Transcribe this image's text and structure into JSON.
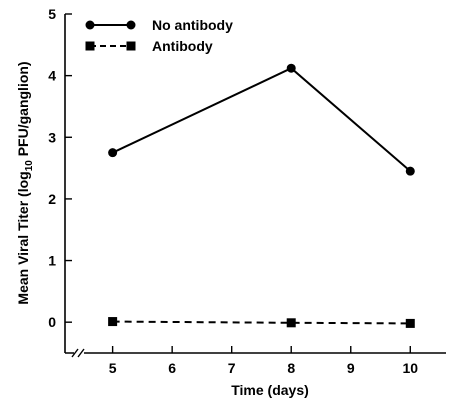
{
  "chart_data": {
    "type": "line",
    "xlabel": "Time (days)",
    "ylabel": "Mean Viral Titer (log10 PFU/ganglion)",
    "ylabel_parts": {
      "before": "Mean Viral Titer (log",
      "subscript": "10",
      "after": " PFU/ganglion)"
    },
    "x_ticks": [
      5,
      6,
      7,
      8,
      9,
      10
    ],
    "y_ticks": [
      0,
      1,
      2,
      3,
      4,
      5
    ],
    "xlim": [
      4.2,
      10.6
    ],
    "ylim": [
      -0.5,
      5
    ],
    "legend_placement": "top-left",
    "grid": false,
    "axis_break": "x-axis near origin",
    "series": [
      {
        "name": "No antibody",
        "style": "solid",
        "marker": "circle",
        "x": [
          5,
          8,
          10
        ],
        "y": [
          2.75,
          4.12,
          2.45
        ]
      },
      {
        "name": "Antibody",
        "style": "dashed",
        "marker": "square",
        "x": [
          5,
          8,
          10
        ],
        "y": [
          0.01,
          -0.01,
          -0.02
        ]
      }
    ]
  }
}
